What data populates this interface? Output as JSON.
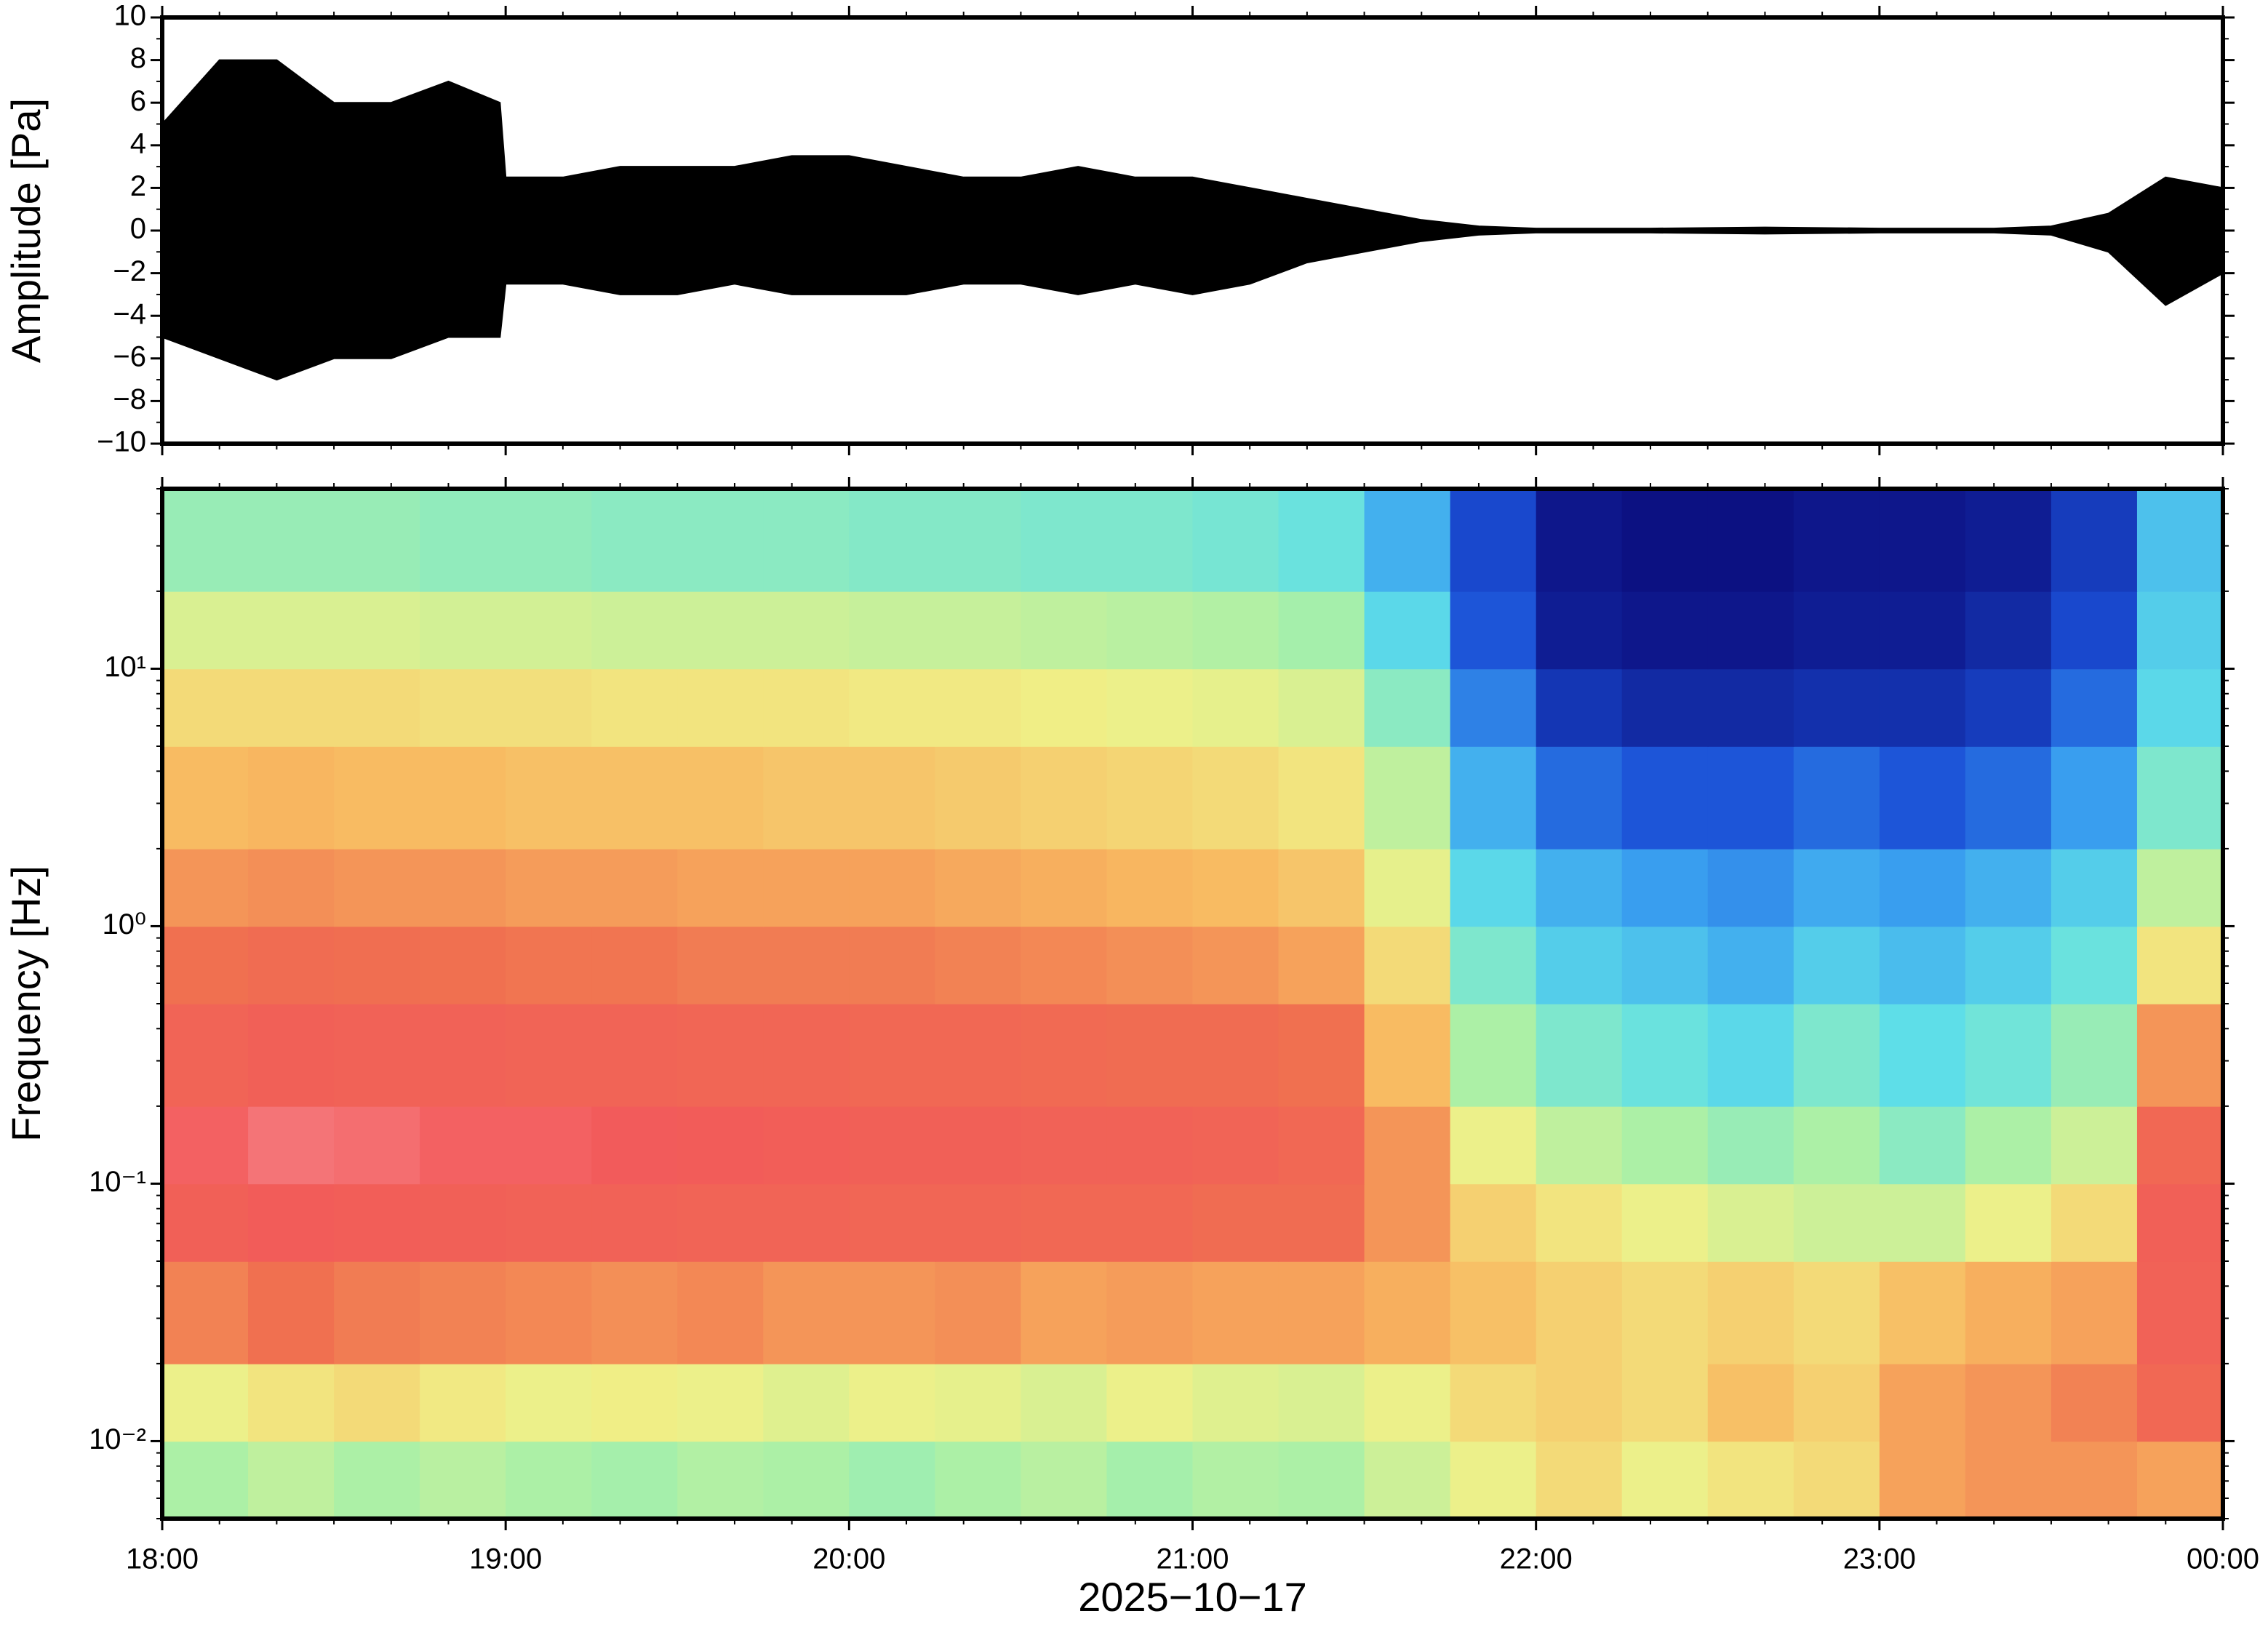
{
  "chart_data": [
    {
      "type": "line",
      "ylabel": "Amplitude [Pa]",
      "x": [
        "18:00",
        "18:10",
        "18:20",
        "18:30",
        "18:40",
        "18:50",
        "18:59",
        "19:00",
        "19:10",
        "19:20",
        "19:30",
        "19:40",
        "19:50",
        "20:00",
        "20:10",
        "20:20",
        "20:30",
        "20:40",
        "20:50",
        "21:00",
        "21:10",
        "21:20",
        "21:30",
        "21:40",
        "21:50",
        "22:00",
        "22:20",
        "22:40",
        "23:00",
        "23:20",
        "23:30",
        "23:40",
        "23:50",
        "00:00"
      ],
      "series": [
        {
          "color": "#000000",
          "values": [
            5,
            8,
            8,
            6,
            6,
            7,
            6,
            2.5,
            2.5,
            3,
            3,
            3,
            3.5,
            3.5,
            3,
            2.5,
            2.5,
            3,
            2.5,
            2.5,
            2,
            1.5,
            1,
            0.5,
            0.2,
            0.1,
            0.1,
            0.15,
            0.1,
            0.1,
            0.2,
            0.8,
            2.5,
            2
          ]
        },
        {
          "color": "#000000",
          "values": [
            -5,
            -6,
            -7,
            -6,
            -6,
            -5,
            -5,
            -2.5,
            -2.5,
            -3,
            -3,
            -2.5,
            -3,
            -3,
            -3,
            -2.5,
            -2.5,
            -3,
            -2.5,
            -3,
            -2.5,
            -1.5,
            -1,
            -0.5,
            -0.2,
            -0.1,
            -0.1,
            -0.15,
            -0.1,
            -0.1,
            -0.2,
            -1,
            -3.5,
            -2
          ]
        }
      ],
      "xlim": [
        "18:00",
        "00:00"
      ],
      "xticks": [
        "18:00",
        "19:00",
        "20:00",
        "21:00",
        "22:00",
        "23:00",
        "00:00"
      ],
      "ylim": [
        -10,
        10
      ],
      "yticks": [
        {
          "value": -10,
          "label": "−10"
        },
        {
          "value": -8,
          "label": "−8"
        },
        {
          "value": -6,
          "label": "−6"
        },
        {
          "value": -4,
          "label": "−4"
        },
        {
          "value": -2,
          "label": "−2"
        },
        0,
        2,
        4,
        6,
        8,
        10
      ]
    },
    {
      "type": "heatmap",
      "ylabel": "Frequency [Hz]",
      "xlabel": "2025−10−17",
      "yscale": "log",
      "xlim": [
        "18:00",
        "00:00"
      ],
      "xticks": [
        "18:00",
        "19:00",
        "20:00",
        "21:00",
        "22:00",
        "23:00",
        "00:00"
      ],
      "ylim": [
        0.005,
        50
      ],
      "yticks": [
        {
          "value": 0.01,
          "label": "10⁻²"
        },
        {
          "value": 0.1,
          "label": "10⁻¹"
        },
        {
          "value": 1,
          "label": "10⁰"
        },
        {
          "value": 10,
          "label": "10¹"
        }
      ],
      "colormap": [
        "#0b0b7a",
        "#1a4fd6",
        "#3aa0f0",
        "#5fe0e8",
        "#a8f0a8",
        "#f0f088",
        "#f8b860",
        "#f07050",
        "#f25a5a",
        "#f8a0a8"
      ],
      "xbins": [
        "18:00",
        "18:15",
        "18:30",
        "18:45",
        "19:00",
        "19:15",
        "19:30",
        "19:45",
        "20:00",
        "20:15",
        "20:30",
        "20:45",
        "21:00",
        "21:15",
        "21:30",
        "21:45",
        "22:00",
        "22:15",
        "22:30",
        "22:45",
        "23:00",
        "23:15",
        "23:30",
        "23:45",
        "00:00"
      ],
      "ybins": [
        0.005,
        0.01,
        0.02,
        0.05,
        0.1,
        0.2,
        0.5,
        1,
        2,
        5,
        10,
        20,
        50
      ],
      "z": [
        [
          0.45,
          0.48,
          0.45,
          0.47,
          0.45,
          0.44,
          0.46,
          0.45,
          0.43,
          0.45,
          0.47,
          0.44,
          0.46,
          0.45,
          0.5,
          0.55,
          0.6,
          0.55,
          0.58,
          0.6,
          0.7,
          0.72,
          0.72,
          0.7
        ],
        [
          0.55,
          0.58,
          0.6,
          0.57,
          0.55,
          0.56,
          0.55,
          0.53,
          0.55,
          0.54,
          0.52,
          0.55,
          0.53,
          0.52,
          0.55,
          0.6,
          0.62,
          0.6,
          0.65,
          0.62,
          0.7,
          0.72,
          0.75,
          0.82
        ],
        [
          0.75,
          0.78,
          0.76,
          0.75,
          0.74,
          0.73,
          0.74,
          0.72,
          0.72,
          0.73,
          0.7,
          0.71,
          0.7,
          0.7,
          0.68,
          0.65,
          0.62,
          0.6,
          0.62,
          0.6,
          0.65,
          0.68,
          0.7,
          0.85
        ],
        [
          0.86,
          0.88,
          0.87,
          0.86,
          0.85,
          0.85,
          0.84,
          0.84,
          0.83,
          0.83,
          0.82,
          0.82,
          0.8,
          0.8,
          0.72,
          0.62,
          0.58,
          0.55,
          0.52,
          0.5,
          0.5,
          0.55,
          0.6,
          0.86
        ],
        [
          0.9,
          0.93,
          0.92,
          0.9,
          0.9,
          0.89,
          0.88,
          0.87,
          0.86,
          0.86,
          0.85,
          0.85,
          0.84,
          0.82,
          0.72,
          0.55,
          0.48,
          0.45,
          0.42,
          0.45,
          0.4,
          0.45,
          0.5,
          0.82
        ],
        [
          0.84,
          0.86,
          0.85,
          0.85,
          0.84,
          0.84,
          0.83,
          0.83,
          0.82,
          0.82,
          0.81,
          0.8,
          0.8,
          0.78,
          0.66,
          0.45,
          0.38,
          0.35,
          0.32,
          0.38,
          0.33,
          0.36,
          0.42,
          0.72
        ],
        [
          0.78,
          0.8,
          0.79,
          0.78,
          0.77,
          0.77,
          0.76,
          0.76,
          0.76,
          0.75,
          0.74,
          0.73,
          0.72,
          0.7,
          0.6,
          0.38,
          0.3,
          0.28,
          0.25,
          0.3,
          0.27,
          0.3,
          0.35,
          0.58
        ],
        [
          0.72,
          0.73,
          0.72,
          0.72,
          0.71,
          0.71,
          0.7,
          0.7,
          0.7,
          0.69,
          0.68,
          0.67,
          0.66,
          0.64,
          0.54,
          0.32,
          0.25,
          0.22,
          0.2,
          0.24,
          0.22,
          0.25,
          0.3,
          0.48
        ],
        [
          0.66,
          0.67,
          0.66,
          0.66,
          0.65,
          0.65,
          0.65,
          0.64,
          0.64,
          0.63,
          0.62,
          0.61,
          0.6,
          0.58,
          0.48,
          0.25,
          0.15,
          0.12,
          0.12,
          0.15,
          0.12,
          0.15,
          0.22,
          0.38
        ],
        [
          0.6,
          0.6,
          0.6,
          0.59,
          0.59,
          0.58,
          0.58,
          0.58,
          0.57,
          0.57,
          0.56,
          0.55,
          0.54,
          0.52,
          0.4,
          0.18,
          0.07,
          0.05,
          0.05,
          0.06,
          0.06,
          0.08,
          0.15,
          0.32
        ],
        [
          0.52,
          0.52,
          0.52,
          0.51,
          0.51,
          0.5,
          0.5,
          0.5,
          0.49,
          0.49,
          0.48,
          0.47,
          0.46,
          0.44,
          0.32,
          0.12,
          0.03,
          0.02,
          0.02,
          0.03,
          0.03,
          0.05,
          0.1,
          0.3
        ],
        [
          0.42,
          0.42,
          0.42,
          0.41,
          0.41,
          0.4,
          0.4,
          0.4,
          0.39,
          0.39,
          0.38,
          0.38,
          0.37,
          0.35,
          0.25,
          0.1,
          0.02,
          0.01,
          0.01,
          0.02,
          0.02,
          0.03,
          0.08,
          0.28
        ]
      ]
    }
  ]
}
